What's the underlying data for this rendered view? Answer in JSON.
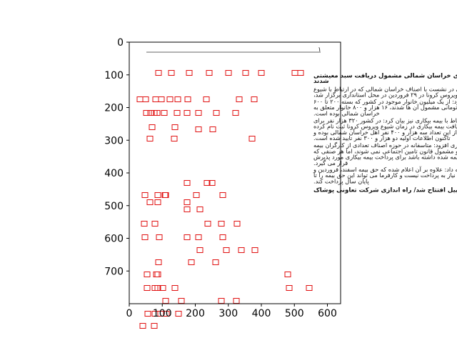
{
  "chart_data": {
    "type": "image-with-boxes",
    "title": "",
    "xlabel": "",
    "ylabel": "",
    "xlim": [
      0,
      640
    ],
    "ylim": [
      800,
      0
    ],
    "xticks": [
      0,
      100,
      200,
      300,
      400,
      500,
      600
    ],
    "yticks": [
      0,
      100,
      200,
      300,
      400,
      500,
      600,
      700
    ],
    "box_color": "#e01010",
    "page_number": "۱",
    "lines": [
      {
        "y": 100,
        "bold": true,
        "text": "۱۰۸ درصد از خانوارهای خراسان شمالی مشمول دریافت سبد معیشتی"
      },
      {
        "y": 117,
        "bold": true,
        "text": "شدند"
      },
      {
        "y": 142,
        "bold": false,
        "text": "نوری در نشست با اصناف خراسان شمالی که در ارتباط با شیوع"
      },
      {
        "y": 160,
        "bold": false,
        "text": "ویروس کرونا در ۲۹ فروردین در محل استانداری برگزار شد،"
      },
      {
        "y": 180,
        "bold": false,
        "text": "اظهارکرد: از یک میلیون خانوار موجود در کشور که بسته ۲۰۰ تا ۶۰۰"
      },
      {
        "y": 198,
        "bold": false,
        "text": "هزار تومانی مشمول آن ها شدند، ۱۶ هزار و ۸۰۰ خانوار متعلق به"
      },
      {
        "y": 216,
        "bold": false,
        "text": "خراسان شمالی بوده است."
      },
      {
        "y": 238,
        "bold": false,
        "text": "وی در ارتباط با بیمه بیکاری نیز بیان کرد: در کشور ۳۲۰ هزار نفر برای"
      },
      {
        "y": 256,
        "bold": false,
        "text": "دریافت بیمه بیکاری در زمان شیوع ویروس کرونا ثبت نام کرده"
      },
      {
        "y": 274,
        "bold": false,
        "text": "بودند که از این تعداد سه هزار و ۴۰۰ نفر اهل خراسان شمالی بوده و"
      },
      {
        "y": 292,
        "bold": false,
        "text": "تاکنون اطلاعات اولیه دو هزار و ۳۰۰ نفر تایید شده است."
      },
      {
        "y": 314,
        "bold": false,
        "text": "نوری افزود: متاسفانه در حوزه اصناف تعدادی از کارگران بیمه"
      },
      {
        "y": 332,
        "bold": false,
        "text": "نیستند و مشمول قانون تامین اجتماعی نمی شوند، اما هر صنفی که"
      },
      {
        "y": 350,
        "bold": false,
        "text": "کارگر بیمه شده داشته باشد برای پرداخت بیمه بیکاری مورد پذیرش"
      },
      {
        "y": 368,
        "bold": false,
        "text": "قرار می گیرد."
      },
      {
        "y": 388,
        "bold": false,
        "text": "وی ادامه داد: علاوه بر آن اعلام شده که حق بیمه اسفند، فروردین و"
      },
      {
        "y": 406,
        "bold": false,
        "text": "اردیبهشت نیاز به پرداخت نیست و کارفرما می تواند این حق بیمه را تا"
      },
      {
        "y": 424,
        "bold": false,
        "text": "پایان سال پرداخت کند."
      },
      {
        "y": 450,
        "bold": true,
        "text": "۱۰ طرح تعاونی در اردبیل افتتاح شد/ راه اندازی شرکت تعاونی پوشاک"
      }
    ],
    "boxes": [
      [
        421,
        102
      ],
      [
        413,
        102
      ],
      [
        366,
        102
      ],
      [
        344,
        102
      ],
      [
        320,
        102
      ],
      [
        293,
        102
      ],
      [
        265,
        102
      ],
      [
        240,
        102
      ],
      [
        222,
        102
      ],
      [
        249,
        139
      ],
      [
        204,
        139
      ],
      [
        218,
        139
      ],
      [
        196,
        139
      ],
      [
        226,
        139
      ],
      [
        238,
        139
      ],
      [
        356,
        139
      ],
      [
        335,
        139
      ],
      [
        289,
        139
      ],
      [
        263,
        139
      ],
      [
        230,
        158
      ],
      [
        220,
        158
      ],
      [
        211,
        158
      ],
      [
        330,
        158
      ],
      [
        303,
        158
      ],
      [
        262,
        158
      ],
      [
        216,
        158
      ],
      [
        248,
        158
      ],
      [
        278,
        158
      ],
      [
        205,
        158
      ],
      [
        298,
        181
      ],
      [
        278,
        181
      ],
      [
        353,
        194
      ],
      [
        210,
        194
      ],
      [
        244,
        194
      ],
      [
        245,
        178
      ],
      [
        213,
        178
      ],
      [
        297,
        256
      ],
      [
        262,
        256
      ],
      [
        290,
        256
      ],
      [
        312,
        273
      ],
      [
        231,
        273
      ],
      [
        232,
        273
      ],
      [
        203,
        273
      ],
      [
        221,
        273
      ],
      [
        275,
        273
      ],
      [
        210,
        283
      ],
      [
        221,
        283
      ],
      [
        262,
        283
      ],
      [
        262,
        293
      ],
      [
        280,
        293
      ],
      [
        310,
        313
      ],
      [
        332,
        313
      ],
      [
        291,
        313
      ],
      [
        217,
        313
      ],
      [
        202,
        313
      ],
      [
        203,
        332
      ],
      [
        262,
        332
      ],
      [
        278,
        332
      ],
      [
        312,
        332
      ],
      [
        223,
        332
      ],
      [
        357,
        350
      ],
      [
        338,
        350
      ],
      [
        317,
        350
      ],
      [
        280,
        350
      ],
      [
        268,
        367
      ],
      [
        222,
        367
      ],
      [
        302,
        367
      ],
      [
        221,
        384
      ],
      [
        219,
        384
      ],
      [
        403,
        384
      ],
      [
        206,
        384
      ],
      [
        245,
        403
      ],
      [
        206,
        403
      ],
      [
        217,
        403
      ],
      [
        221,
        403
      ],
      [
        228,
        403
      ],
      [
        433,
        403
      ],
      [
        405,
        403
      ],
      [
        254,
        421
      ],
      [
        232,
        421
      ],
      [
        310,
        421
      ],
      [
        331,
        421
      ],
      [
        225,
        439
      ],
      [
        217,
        439
      ],
      [
        207,
        439
      ],
      [
        250,
        439
      ],
      [
        233,
        439
      ],
      [
        216,
        456
      ],
      [
        200,
        456
      ]
    ]
  }
}
